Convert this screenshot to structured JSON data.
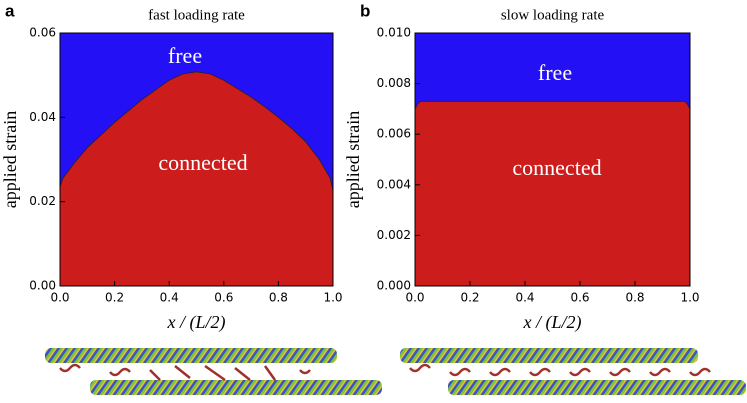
{
  "chart_data": [
    {
      "type": "area",
      "panel_label": "a",
      "title": "fast loading rate",
      "x_label": "x / (L/2)",
      "y_label": "applied strain",
      "background_color": "#2410f5",
      "annotations": [
        "free",
        "connected"
      ],
      "x": [
        0,
        0.01,
        0.05,
        0.1,
        0.15,
        0.2,
        0.25,
        0.3,
        0.35,
        0.4,
        0.45,
        0.5,
        0.55,
        0.6,
        0.65,
        0.7,
        0.75,
        0.8,
        0.85,
        0.9,
        0.95,
        0.99,
        1.0
      ],
      "series": [
        {
          "color": "#cc1c1c",
          "values": [
            0.0235,
            0.0255,
            0.029,
            0.0328,
            0.0358,
            0.0388,
            0.0415,
            0.0442,
            0.0465,
            0.0488,
            0.0503,
            0.0508,
            0.0503,
            0.0488,
            0.0468,
            0.0448,
            0.0425,
            0.04,
            0.0373,
            0.0342,
            0.03,
            0.0255,
            0.0225
          ]
        }
      ],
      "xlim": [
        0,
        1
      ],
      "ylim": [
        0,
        0.06
      ],
      "xticks": [
        {
          "value": 0,
          "label": "0.0"
        },
        {
          "value": 0.2,
          "label": "0.2"
        },
        {
          "value": 0.4,
          "label": "0.4"
        },
        {
          "value": 0.6,
          "label": "0.6"
        },
        {
          "value": 0.8,
          "label": "0.8"
        },
        {
          "value": 1,
          "label": "1.0"
        }
      ],
      "yticks": [
        {
          "value": 0,
          "label": "0.00"
        },
        {
          "value": 0.02,
          "label": "0.02"
        },
        {
          "value": 0.04,
          "label": "0.04"
        },
        {
          "value": 0.06,
          "label": "0.06"
        }
      ]
    },
    {
      "type": "area",
      "panel_label": "b",
      "title": "slow loading rate",
      "x_label": "x / (L/2)",
      "y_label": "applied strain",
      "background_color": "#2410f5",
      "annotations": [
        "free",
        "connected"
      ],
      "x": [
        0,
        0.01,
        0.02,
        0.98,
        0.99,
        1.0
      ],
      "series": [
        {
          "color": "#cc1c1c",
          "values": [
            0.007,
            0.0072,
            0.0073,
            0.0073,
            0.0072,
            0.007
          ]
        }
      ],
      "xlim": [
        0,
        1
      ],
      "ylim": [
        0,
        0.01
      ],
      "xticks": [
        {
          "value": 0,
          "label": "0.0"
        },
        {
          "value": 0.2,
          "label": "0.2"
        },
        {
          "value": 0.4,
          "label": "0.4"
        },
        {
          "value": 0.6,
          "label": "0.6"
        },
        {
          "value": 0.8,
          "label": "0.8"
        },
        {
          "value": 1,
          "label": "1.0"
        }
      ],
      "yticks": [
        {
          "value": 0,
          "label": "0.000"
        },
        {
          "value": 0.002,
          "label": "0.002"
        },
        {
          "value": 0.004,
          "label": "0.004"
        },
        {
          "value": 0.006,
          "label": "0.006"
        },
        {
          "value": 0.008,
          "label": "0.008"
        },
        {
          "value": 0.01,
          "label": "0.010"
        }
      ]
    }
  ]
}
